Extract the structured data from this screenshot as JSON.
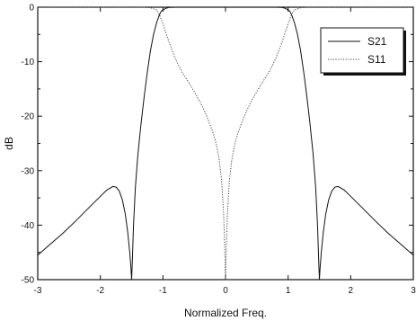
{
  "chart_data": {
    "type": "line",
    "title": "",
    "xlabel": "Normalized Freq.",
    "ylabel": "dB",
    "xlim": [
      -3,
      3
    ],
    "ylim": [
      -50,
      0
    ],
    "xticks": [
      -3,
      -2,
      -1,
      0,
      1,
      2,
      3
    ],
    "yticks": [
      0,
      -10,
      -20,
      -30,
      -40,
      -50
    ],
    "grid": false,
    "legend": {
      "placement": "top-right"
    },
    "series": [
      {
        "name": "S21",
        "style": "solid",
        "color": "#111111",
        "x": [
          -3.0,
          -2.8,
          -2.6,
          -2.4,
          -2.2,
          -2.0,
          -1.9,
          -1.8,
          -1.75,
          -1.7,
          -1.65,
          -1.6,
          -1.56,
          -1.53,
          -1.51,
          -1.5,
          -1.49,
          -1.47,
          -1.44,
          -1.4,
          -1.35,
          -1.3,
          -1.25,
          -1.2,
          -1.15,
          -1.1,
          -1.06,
          -1.03,
          -1.0,
          -0.95,
          -0.9,
          -0.8,
          -0.6,
          -0.4,
          -0.2,
          0.0,
          0.2,
          0.4,
          0.6,
          0.8,
          0.9,
          0.95,
          1.0,
          1.03,
          1.06,
          1.1,
          1.15,
          1.2,
          1.25,
          1.3,
          1.35,
          1.4,
          1.44,
          1.47,
          1.49,
          1.5,
          1.51,
          1.53,
          1.56,
          1.6,
          1.65,
          1.7,
          1.75,
          1.8,
          1.9,
          2.0,
          2.2,
          2.4,
          2.6,
          2.8,
          3.0
        ],
        "values": [
          -45.5,
          -43.5,
          -41.5,
          -39.3,
          -37.0,
          -34.7,
          -33.6,
          -32.9,
          -33.0,
          -33.7,
          -35.3,
          -38.0,
          -41.5,
          -45.0,
          -48.0,
          -50.0,
          -47.0,
          -40.0,
          -33.0,
          -27.0,
          -21.5,
          -16.5,
          -12.0,
          -8.0,
          -5.0,
          -2.8,
          -1.5,
          -0.8,
          -0.5,
          -0.2,
          -0.05,
          0.0,
          0.0,
          0.0,
          0.0,
          0.0,
          0.0,
          0.0,
          0.0,
          0.0,
          -0.05,
          -0.2,
          -0.5,
          -0.8,
          -1.5,
          -2.8,
          -5.0,
          -8.0,
          -12.0,
          -16.5,
          -21.5,
          -27.0,
          -33.0,
          -40.0,
          -47.0,
          -50.0,
          -48.0,
          -45.0,
          -41.5,
          -38.0,
          -35.3,
          -33.7,
          -33.0,
          -32.9,
          -33.6,
          -34.7,
          -37.0,
          -39.3,
          -41.5,
          -43.5,
          -45.5
        ]
      },
      {
        "name": "S11",
        "style": "dotted",
        "color": "#444444",
        "x": [
          -3.0,
          -1.3,
          -1.2,
          -1.1,
          -1.05,
          -1.0,
          -0.95,
          -0.9,
          -0.85,
          -0.8,
          -0.7,
          -0.6,
          -0.5,
          -0.4,
          -0.3,
          -0.2,
          -0.15,
          -0.1,
          -0.06,
          -0.03,
          -0.01,
          0.0,
          0.01,
          0.03,
          0.06,
          0.1,
          0.15,
          0.2,
          0.3,
          0.4,
          0.5,
          0.6,
          0.7,
          0.8,
          0.85,
          0.9,
          0.95,
          1.0,
          1.05,
          1.1,
          1.2,
          1.3,
          3.0
        ],
        "values": [
          0.0,
          0.0,
          -0.1,
          -0.5,
          -1.5,
          -3.0,
          -4.8,
          -6.5,
          -8.0,
          -9.5,
          -11.8,
          -13.6,
          -15.5,
          -17.5,
          -20.0,
          -23.0,
          -25.0,
          -28.0,
          -32.0,
          -38.0,
          -45.0,
          -50.0,
          -45.0,
          -38.0,
          -32.0,
          -28.0,
          -25.0,
          -23.0,
          -20.0,
          -17.5,
          -15.5,
          -13.6,
          -11.8,
          -9.5,
          -8.0,
          -6.5,
          -4.8,
          -3.0,
          -1.5,
          -0.5,
          -0.1,
          0.0,
          0.0
        ]
      }
    ]
  }
}
